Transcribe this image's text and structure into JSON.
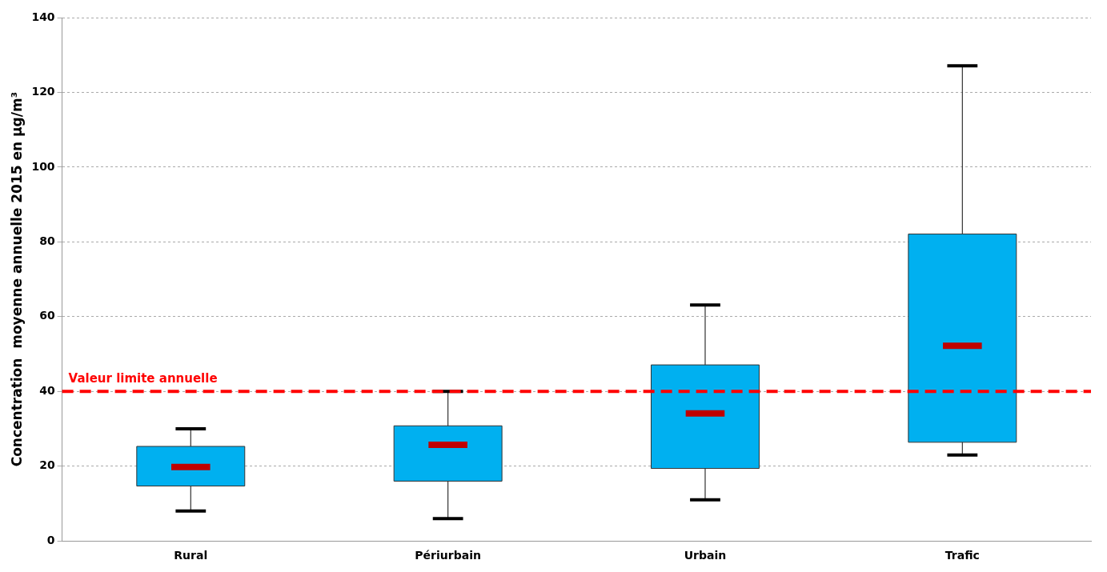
{
  "chart_data": {
    "type": "box",
    "ylabel": "Concentration  moyenne annuelle 2015 en µg/m³",
    "categories": [
      "Rural",
      "Périurbain",
      "Urbain",
      "Trafic"
    ],
    "series": [
      {
        "color": "#00b0f0",
        "boxes": [
          {
            "low": 8,
            "q1": 14.7,
            "median": 19.8,
            "q3": 25.3,
            "high": 30
          },
          {
            "low": 6,
            "q1": 16,
            "median": 25.7,
            "q3": 30.8,
            "high": 40
          },
          {
            "low": 11,
            "q1": 19.4,
            "median": 34.1,
            "q3": 47.1,
            "high": 63.1
          },
          {
            "low": 23,
            "q1": 26.4,
            "median": 52.2,
            "q3": 82.1,
            "high": 127.1
          }
        ]
      }
    ],
    "ylim": [
      0,
      140
    ],
    "yticks": [
      0,
      20,
      40,
      60,
      80,
      100,
      120,
      140
    ],
    "ref_lines": [
      {
        "axis": "y",
        "value": 40,
        "label": "Valeur limite annuelle",
        "color": "#ff0000",
        "line_style": "dashed"
      }
    ],
    "grid": "y",
    "legend": false
  }
}
